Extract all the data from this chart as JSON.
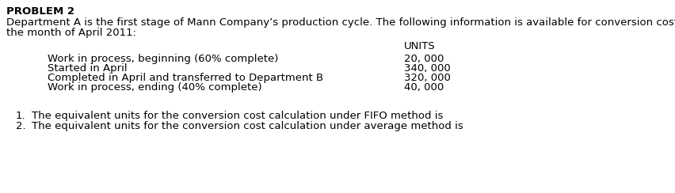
{
  "title": "PROBLEM 2",
  "intro_line1": "Department A is the first stage of Mann Company’s production cycle. The following information is available for conversion costs for",
  "intro_line2": "the month of April 2011:",
  "column_header": "UNITS",
  "table_rows": [
    {
      "label": "Work in process, beginning (60% complete)",
      "value": "20, 000"
    },
    {
      "label": "Started in April",
      "value": "340, 000"
    },
    {
      "label": "Completed in April and transferred to Department B",
      "value": "320, 000"
    },
    {
      "label": "Work in process, ending (40% complete)",
      "value": "40, 000"
    }
  ],
  "questions": [
    "The equivalent units for the conversion cost calculation under FIFO method is",
    "The equivalent units for the conversion cost calculation under average method is"
  ],
  "background_color": "#ffffff",
  "font_size": 9.5
}
